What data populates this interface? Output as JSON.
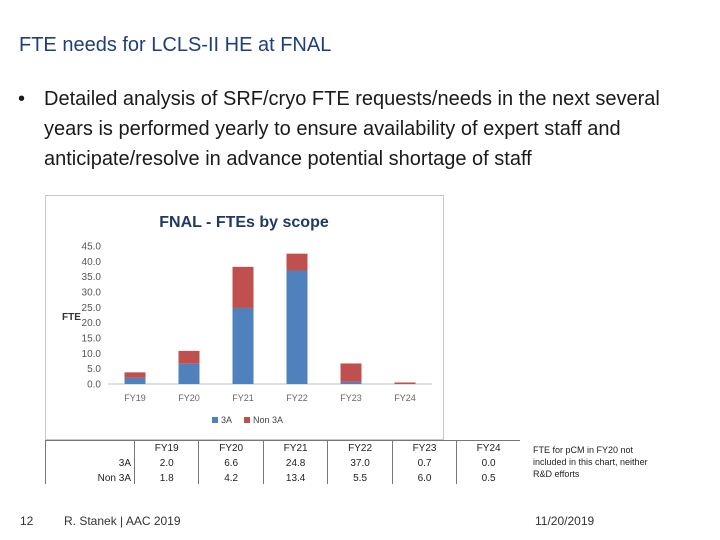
{
  "slide": {
    "title": "FTE needs for LCLS-II HE at FNAL",
    "bullet_symbol": "•",
    "bullet": "Detailed analysis of SRF/cryo FTE requests/needs in the next several years is performed yearly to ensure availability of expert staff and anticipate/resolve in advance potential shortage of staff",
    "note": "FTE for pCM in FY20 not included in this chart, neither R&D efforts",
    "page_number": "12",
    "author": "R. Stanek | AAC 2019",
    "date": "11/20/2019"
  },
  "chart_data": {
    "type": "bar",
    "stacked": true,
    "title": "FNAL - FTEs by scope",
    "ylabel": "FTE",
    "xlabel": "",
    "categories": [
      "FY19",
      "FY20",
      "FY21",
      "FY22",
      "FY23",
      "FY24"
    ],
    "series": [
      {
        "name": "3A",
        "values": [
          2.0,
          6.6,
          24.8,
          37.0,
          0.7,
          0.0
        ],
        "color": "#4f81bd"
      },
      {
        "name": "Non 3A",
        "values": [
          1.8,
          4.2,
          13.4,
          5.5,
          6.0,
          0.5
        ],
        "color": "#c0504d"
      }
    ],
    "ylim": [
      0,
      45
    ],
    "yticks": [
      "0.0",
      "5.0",
      "10.0",
      "15.0",
      "20.0",
      "25.0",
      "30.0",
      "35.0",
      "40.0",
      "45.0"
    ],
    "grid": false,
    "legend": "bottom",
    "table": {
      "row_labels": [
        "3A",
        "Non 3A"
      ],
      "rows": [
        [
          "2.0",
          "6.6",
          "24.8",
          "37.0",
          "0.7",
          "0.0"
        ],
        [
          "1.8",
          "4.2",
          "13.4",
          "5.5",
          "6.0",
          "0.5"
        ]
      ]
    }
  }
}
